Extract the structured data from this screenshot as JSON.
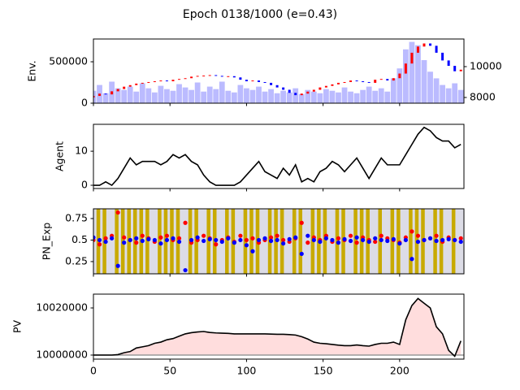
{
  "title": "Epoch 0138/1000 (e=0.43)",
  "chart_data": [
    {
      "type": "candlestick",
      "ylabel": "Env.",
      "x": [
        0,
        4,
        8,
        12,
        16,
        20,
        24,
        28,
        32,
        36,
        40,
        44,
        48,
        52,
        56,
        60,
        64,
        68,
        72,
        76,
        80,
        84,
        88,
        92,
        96,
        100,
        104,
        108,
        112,
        116,
        120,
        124,
        128,
        132,
        136,
        140,
        144,
        148,
        152,
        156,
        160,
        164,
        168,
        172,
        176,
        180,
        184,
        188,
        192,
        196,
        200,
        204,
        208,
        212,
        216,
        220,
        224,
        228,
        232,
        236,
        240
      ],
      "open": [
        8000,
        8100,
        8250,
        8200,
        8400,
        8550,
        8700,
        8800,
        8900,
        8950,
        9000,
        9050,
        9100,
        9050,
        9150,
        9200,
        9250,
        9350,
        9400,
        9420,
        9450,
        9400,
        9350,
        9380,
        9300,
        9150,
        9050,
        9100,
        9000,
        8950,
        8800,
        8650,
        8500,
        8300,
        8150,
        8250,
        8380,
        8500,
        8650,
        8750,
        8850,
        8950,
        9000,
        9100,
        9050,
        9000,
        8950,
        9150,
        9200,
        9100,
        9250,
        9550,
        10200,
        10900,
        11300,
        11500,
        11350,
        10900,
        10400,
        10050,
        9700
      ],
      "close": [
        8100,
        8250,
        8200,
        8400,
        8550,
        8700,
        8800,
        8900,
        8950,
        9000,
        9050,
        9100,
        9050,
        9150,
        9200,
        9250,
        9350,
        9400,
        9420,
        9450,
        9400,
        9350,
        9380,
        9300,
        9150,
        9050,
        9100,
        9000,
        8950,
        8800,
        8650,
        8500,
        8300,
        8150,
        8250,
        8380,
        8500,
        8650,
        8750,
        8850,
        8950,
        9000,
        9100,
        9050,
        9000,
        8950,
        9150,
        9200,
        9100,
        9250,
        9550,
        10200,
        10900,
        11300,
        11500,
        11350,
        10900,
        10400,
        10050,
        9700,
        9800
      ],
      "up_color": "#ff0000",
      "down_color": "#0000ff",
      "volume": {
        "color": "#aaaaff",
        "values": [
          150000,
          220000,
          120000,
          260000,
          180000,
          160000,
          200000,
          140000,
          240000,
          180000,
          130000,
          210000,
          170000,
          150000,
          230000,
          190000,
          160000,
          250000,
          140000,
          200000,
          170000,
          260000,
          150000,
          130000,
          220000,
          180000,
          160000,
          200000,
          140000,
          170000,
          120000,
          150000,
          130000,
          180000,
          110000,
          160000,
          140000,
          120000,
          170000,
          150000,
          130000,
          190000,
          140000,
          120000,
          160000,
          200000,
          150000,
          180000,
          140000,
          300000,
          420000,
          650000,
          740000,
          700000,
          520000,
          380000,
          300000,
          220000,
          180000,
          240000,
          160000
        ]
      },
      "xlim": [
        0,
        242
      ],
      "xticks": [
        0,
        50,
        100,
        150,
        200
      ],
      "ylim": [
        0,
        775000
      ],
      "yticks": [
        0,
        500000
      ],
      "y2lim": [
        7630,
        11790
      ],
      "y2ticks": [
        8000,
        10000
      ]
    },
    {
      "type": "line",
      "ylabel": "Agent",
      "color": "#000000",
      "x": [
        0,
        4,
        8,
        12,
        16,
        20,
        24,
        28,
        32,
        36,
        40,
        44,
        48,
        52,
        56,
        60,
        64,
        68,
        72,
        76,
        80,
        84,
        88,
        92,
        96,
        100,
        104,
        108,
        112,
        116,
        120,
        124,
        128,
        132,
        136,
        140,
        144,
        148,
        152,
        156,
        160,
        164,
        168,
        172,
        176,
        180,
        184,
        188,
        192,
        196,
        200,
        204,
        208,
        212,
        216,
        220,
        224,
        228,
        232,
        236,
        240
      ],
      "values": [
        0,
        0,
        1,
        0,
        2,
        5,
        8,
        6,
        7,
        7,
        7,
        6,
        7,
        9,
        8,
        9,
        7,
        6,
        3,
        1,
        0,
        0,
        0,
        0,
        1,
        3,
        5,
        7,
        4,
        3,
        2,
        5,
        3,
        6,
        1,
        2,
        1,
        4,
        5,
        7,
        6,
        4,
        6,
        8,
        5,
        2,
        5,
        8,
        6,
        6,
        6,
        9,
        12,
        15,
        17,
        16,
        14,
        13,
        13,
        11,
        12
      ],
      "xlim": [
        0,
        242
      ],
      "xticks": [
        0,
        50,
        100,
        150,
        200
      ],
      "ylim": [
        -0.95,
        17.9
      ],
      "yticks": [
        0,
        10
      ]
    },
    {
      "type": "scatter",
      "ylabel": "PN_Exp",
      "background": "#dcdce6",
      "x": [
        0,
        4,
        8,
        12,
        16,
        20,
        24,
        28,
        32,
        36,
        40,
        44,
        48,
        52,
        56,
        60,
        64,
        68,
        72,
        76,
        80,
        84,
        88,
        92,
        96,
        100,
        104,
        108,
        112,
        116,
        120,
        124,
        128,
        132,
        136,
        140,
        144,
        148,
        152,
        156,
        160,
        164,
        168,
        172,
        176,
        180,
        184,
        188,
        192,
        196,
        200,
        204,
        208,
        212,
        216,
        220,
        224,
        228,
        232,
        236,
        240
      ],
      "explore": {
        "color": "#c8aa00",
        "values": [
          0,
          1,
          1,
          0,
          1,
          1,
          1,
          1,
          1,
          1,
          0,
          1,
          1,
          1,
          1,
          0,
          1,
          1,
          0,
          1,
          1,
          0,
          1,
          1,
          0,
          1,
          1,
          1,
          0,
          1,
          1,
          1,
          0,
          1,
          1,
          0,
          1,
          1,
          1,
          0,
          1,
          1,
          0,
          1,
          1,
          1,
          0,
          1,
          0,
          1,
          1,
          0,
          1,
          1,
          1,
          0,
          1,
          1,
          0,
          1,
          0
        ]
      },
      "series": [
        {
          "color": "#ff0000",
          "values": [
            0.5,
            0.45,
            0.52,
            0.55,
            0.82,
            0.53,
            0.5,
            0.47,
            0.55,
            0.52,
            0.48,
            0.53,
            0.55,
            0.5,
            0.52,
            0.7,
            0.47,
            0.5,
            0.55,
            0.52,
            0.45,
            0.5,
            0.53,
            0.48,
            0.55,
            0.5,
            0.52,
            0.47,
            0.5,
            0.53,
            0.55,
            0.5,
            0.48,
            0.52,
            0.7,
            0.47,
            0.53,
            0.5,
            0.55,
            0.48,
            0.52,
            0.5,
            0.55,
            0.47,
            0.53,
            0.5,
            0.48,
            0.55,
            0.52,
            0.5,
            0.47,
            0.53,
            0.6,
            0.55,
            0.5,
            0.52,
            0.55,
            0.48,
            0.53,
            0.5,
            0.52
          ]
        },
        {
          "color": "#0000ff",
          "values": [
            0.53,
            0.5,
            0.48,
            0.52,
            0.2,
            0.47,
            0.5,
            0.52,
            0.49,
            0.51,
            0.5,
            0.46,
            0.5,
            0.52,
            0.48,
            0.15,
            0.5,
            0.53,
            0.49,
            0.51,
            0.5,
            0.48,
            0.52,
            0.47,
            0.5,
            0.44,
            0.37,
            0.5,
            0.52,
            0.49,
            0.5,
            0.46,
            0.51,
            0.53,
            0.34,
            0.55,
            0.5,
            0.48,
            0.52,
            0.5,
            0.47,
            0.51,
            0.49,
            0.53,
            0.5,
            0.48,
            0.52,
            0.5,
            0.49,
            0.51,
            0.46,
            0.5,
            0.28,
            0.48,
            0.5,
            0.52,
            0.49,
            0.5,
            0.51,
            0.5,
            0.48
          ]
        }
      ],
      "xlim": [
        0,
        242
      ],
      "xticks": [
        0,
        50,
        100,
        150,
        200
      ],
      "ylim": [
        0.108,
        0.863
      ],
      "yticks": [
        0.25,
        0.5,
        0.75
      ]
    },
    {
      "type": "line",
      "ylabel": "PV",
      "color": "#000000",
      "fill": "#ffdddd",
      "baseline": 10000000,
      "baseline_color": "#999999",
      "x": [
        0,
        4,
        8,
        12,
        16,
        20,
        24,
        28,
        32,
        36,
        40,
        44,
        48,
        52,
        56,
        60,
        64,
        68,
        72,
        76,
        80,
        84,
        88,
        92,
        96,
        100,
        104,
        108,
        112,
        116,
        120,
        124,
        128,
        132,
        136,
        140,
        144,
        148,
        152,
        156,
        160,
        164,
        168,
        172,
        176,
        180,
        184,
        188,
        192,
        196,
        200,
        204,
        208,
        212,
        216,
        220,
        224,
        228,
        232,
        236,
        240
      ],
      "values": [
        10000000,
        10000000,
        10000000,
        10000000,
        10000200,
        10001000,
        10001500,
        10003000,
        10003500,
        10004000,
        10005000,
        10005500,
        10006500,
        10007000,
        10008000,
        10009000,
        10009500,
        10009800,
        10010000,
        10009600,
        10009400,
        10009300,
        10009200,
        10009000,
        10009000,
        10009000,
        10009000,
        10009000,
        10009000,
        10008900,
        10008800,
        10008800,
        10008700,
        10008500,
        10007800,
        10006800,
        10005500,
        10005000,
        10004800,
        10004500,
        10004200,
        10004000,
        10004000,
        10004300,
        10004000,
        10003800,
        10004500,
        10005000,
        10005000,
        10005500,
        10004500,
        10015000,
        10021000,
        10024000,
        10022000,
        10020000,
        10012000,
        10009000,
        10002000,
        9999500,
        10006000
      ],
      "xlim": [
        0,
        242
      ],
      "xticks": [
        0,
        50,
        100,
        150,
        200
      ],
      "ylim": [
        9998280,
        10025860
      ],
      "yticks": [
        10000000,
        10020000
      ]
    }
  ]
}
